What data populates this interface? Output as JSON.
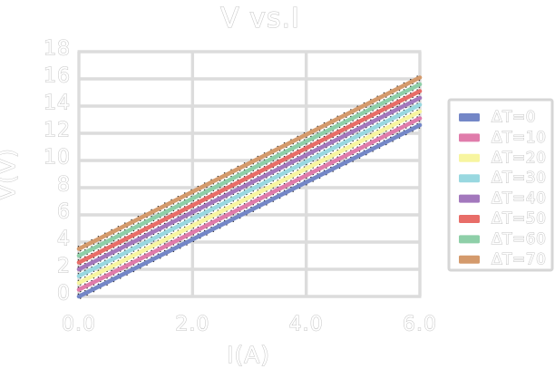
{
  "chart_data": {
    "type": "line",
    "title": "V vs.I",
    "xlabel": "I(A)",
    "ylabel": "V(V)",
    "xlim": [
      0,
      6
    ],
    "ylim": [
      0,
      18
    ],
    "xtick_labels": [
      "0.0",
      "2.0",
      "4.0",
      "6.0"
    ],
    "xtick_values": [
      0,
      2,
      4,
      6
    ],
    "ytick_labels": [
      "0",
      "2",
      "4",
      "6",
      "8",
      "10",
      "12",
      "14",
      "16",
      "18"
    ],
    "ytick_values": [
      0,
      2,
      4,
      6,
      8,
      10,
      12,
      14,
      16,
      18
    ],
    "grid": true,
    "legend_position": "right",
    "x": [
      0,
      6
    ],
    "series": [
      {
        "name": "ΔT=0",
        "color": "#7487c7",
        "y": [
          0.0,
          12.6
        ]
      },
      {
        "name": "ΔT=10",
        "color": "#e07cab",
        "y": [
          0.5,
          13.1
        ]
      },
      {
        "name": "ΔT=20",
        "color": "#f7f5a0",
        "y": [
          1.0,
          13.6
        ]
      },
      {
        "name": "ΔT=30",
        "color": "#99d8e0",
        "y": [
          1.5,
          14.1
        ]
      },
      {
        "name": "ΔT=40",
        "color": "#a378bd",
        "y": [
          2.0,
          14.6
        ]
      },
      {
        "name": "ΔT=50",
        "color": "#e86d68",
        "y": [
          2.5,
          15.1
        ]
      },
      {
        "name": "ΔT=60",
        "color": "#8ecfa8",
        "y": [
          3.0,
          15.6
        ]
      },
      {
        "name": "ΔT=70",
        "color": "#d49a6c",
        "y": [
          3.5,
          16.1
        ]
      }
    ],
    "style": {
      "background": "#ffffff",
      "grid_color": "#dcdcdc",
      "text_fill": "#ffffff",
      "text_outline": "#c3c3c3",
      "line_edge_color": "#1c1c1c",
      "legend_border_color": "#d6d6d6",
      "legend_background": "#ffffff"
    }
  }
}
